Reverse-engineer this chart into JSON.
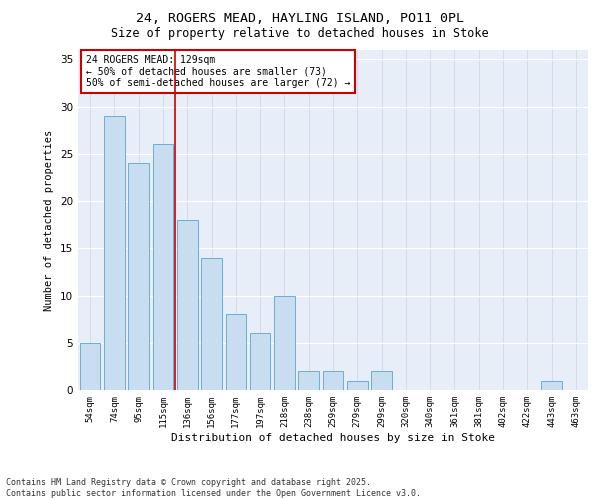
{
  "title1": "24, ROGERS MEAD, HAYLING ISLAND, PO11 0PL",
  "title2": "Size of property relative to detached houses in Stoke",
  "xlabel": "Distribution of detached houses by size in Stoke",
  "ylabel": "Number of detached properties",
  "categories": [
    "54sqm",
    "74sqm",
    "95sqm",
    "115sqm",
    "136sqm",
    "156sqm",
    "177sqm",
    "197sqm",
    "218sqm",
    "238sqm",
    "259sqm",
    "279sqm",
    "299sqm",
    "320sqm",
    "340sqm",
    "361sqm",
    "381sqm",
    "402sqm",
    "422sqm",
    "443sqm",
    "463sqm"
  ],
  "values": [
    5,
    29,
    24,
    26,
    18,
    14,
    8,
    6,
    10,
    2,
    2,
    1,
    2,
    0,
    0,
    0,
    0,
    0,
    0,
    1,
    0
  ],
  "bar_color": "#c8ddf0",
  "bar_edge_color": "#6aaed6",
  "ylim": [
    0,
    36
  ],
  "yticks": [
    0,
    5,
    10,
    15,
    20,
    25,
    30,
    35
  ],
  "vline_x": 3.5,
  "vline_color": "#cc0000",
  "annotation_text": "24 ROGERS MEAD: 129sqm\n← 50% of detached houses are smaller (73)\n50% of semi-detached houses are larger (72) →",
  "bg_color": "#e8eef8",
  "footer": "Contains HM Land Registry data © Crown copyright and database right 2025.\nContains public sector information licensed under the Open Government Licence v3.0."
}
